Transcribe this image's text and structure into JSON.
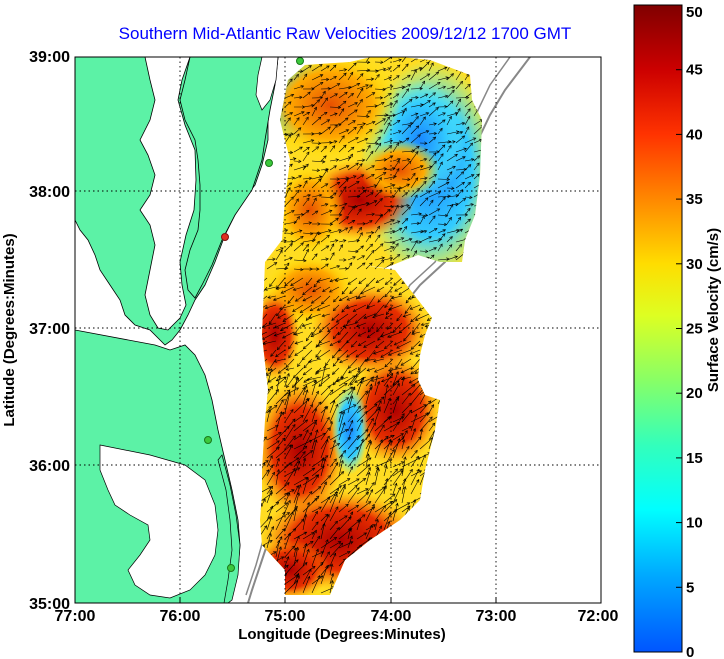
{
  "title": "Southern Mid-Atlantic Raw Velocities 2009/12/12 1700 GMT",
  "xlabel": "Longitude (Degrees:Minutes)",
  "ylabel": "Latitude (Degrees:Minutes)",
  "x_ticks": [
    "77:00",
    "76:00",
    "75:00",
    "74:00",
    "73:00",
    "72:00"
  ],
  "y_ticks": [
    "39:00",
    "38:00",
    "37:00",
    "36:00",
    "35:00"
  ],
  "colorbar": {
    "label": "Surface Velocity (cm/s)",
    "ticks": [
      "0",
      "5",
      "10",
      "15",
      "20",
      "25",
      "30",
      "35",
      "40",
      "45",
      "50"
    ],
    "range": [
      0,
      50
    ],
    "colormap": "jet"
  },
  "map": {
    "lon_range": [
      -77,
      -72
    ],
    "lat_range": [
      35,
      39
    ],
    "grid": true,
    "land_color": "#5cf2a6",
    "water_color": "#ffffff",
    "stations": [
      {
        "name": "station-north",
        "lon": -74.95,
        "lat": 39.0,
        "color": "#3cc83c"
      },
      {
        "name": "station-cape-henlopen",
        "lon": -75.1,
        "lat": 38.23,
        "color": "#3cc83c"
      },
      {
        "name": "station-wallops",
        "lon": -75.4,
        "lat": 37.7,
        "color": "#e03020"
      },
      {
        "name": "station-duck",
        "lon": -75.7,
        "lat": 36.18,
        "color": "#3cc83c"
      },
      {
        "name": "station-hatteras",
        "lon": -75.5,
        "lat": 35.25,
        "color": "#3cc83c"
      }
    ]
  }
}
